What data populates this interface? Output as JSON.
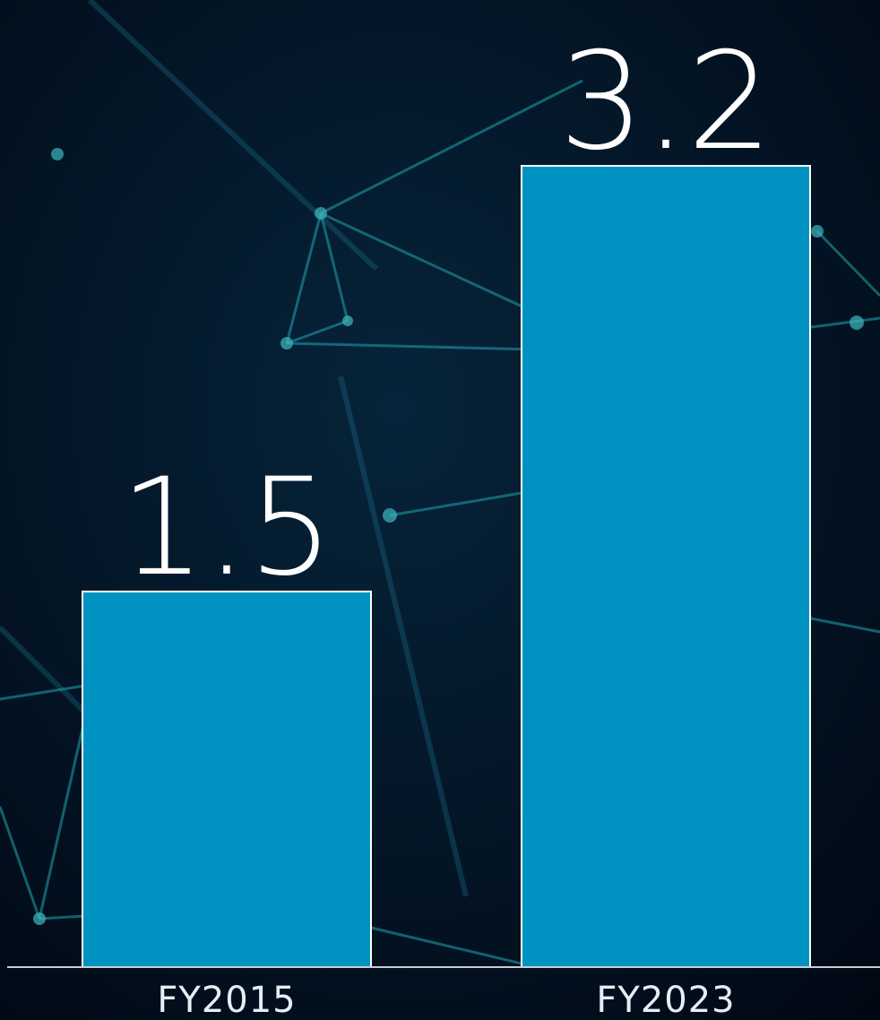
{
  "chart_data": {
    "type": "bar",
    "categories": [
      "FY2015",
      "FY2023"
    ],
    "values": [
      1.5,
      3.2
    ],
    "color": "#0093c2"
  }
}
